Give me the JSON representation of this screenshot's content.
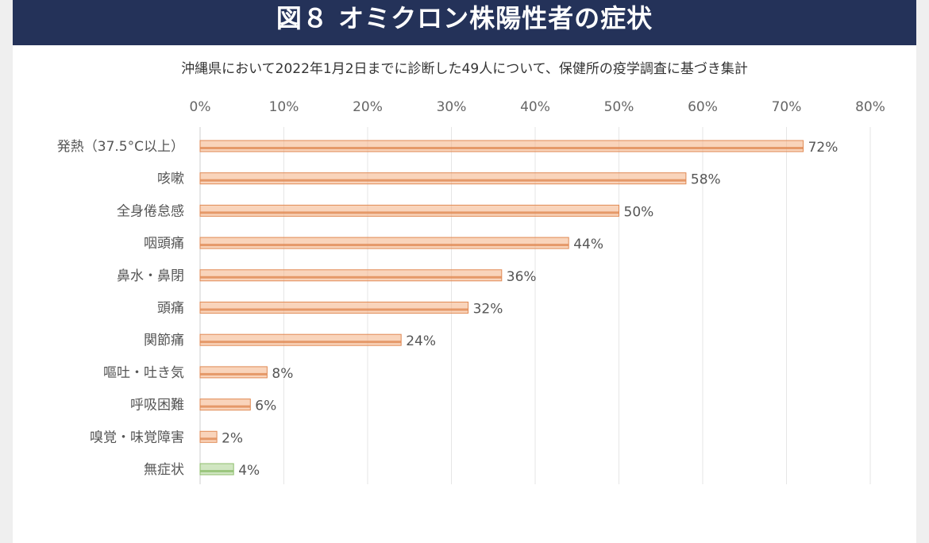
{
  "chart_data": {
    "type": "bar",
    "orientation": "horizontal",
    "title": "図８ オミクロン株陽性者の症状",
    "subtitle": "沖縄県において2022年1月2日までに診断した49人について、保健所の疫学調査に基づき集計",
    "categories": [
      "発熱（37.5°C以上）",
      "咳嗽",
      "全身倦怠感",
      "咽頭痛",
      "鼻水・鼻閉",
      "頭痛",
      "関節痛",
      "嘔吐・吐き気",
      "呼吸困難",
      "嗅覚・味覚障害",
      "無症状"
    ],
    "values": [
      72,
      58,
      50,
      44,
      36,
      32,
      24,
      8,
      6,
      2,
      4
    ],
    "value_labels": [
      "72%",
      "58%",
      "50%",
      "44%",
      "36%",
      "32%",
      "24%",
      "8%",
      "6%",
      "2%",
      "4%"
    ],
    "xlim": [
      0,
      80
    ],
    "xticks": [
      "0%",
      "10%",
      "20%",
      "30%",
      "40%",
      "50%",
      "60%",
      "70%",
      "80%"
    ],
    "xaxis_position": "top",
    "grid": true,
    "colors": {
      "symptom": "#f4b183",
      "asymptomatic": "#a9d18e",
      "header": "#243259"
    }
  }
}
